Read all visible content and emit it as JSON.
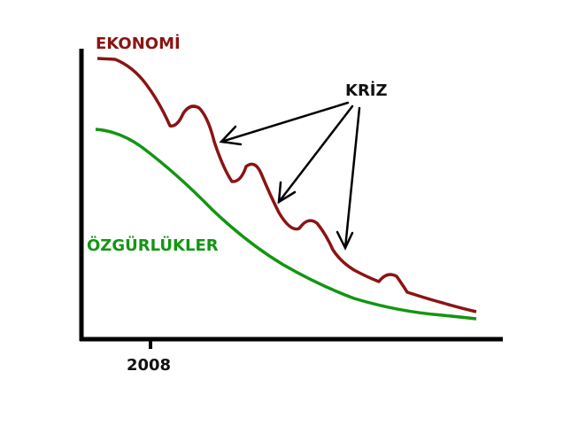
{
  "labels": {
    "economy": "EKONOMİ",
    "freedoms": "ÖZGÜRLÜKLER",
    "crisis": "KRİZ",
    "year": "2008"
  }
}
